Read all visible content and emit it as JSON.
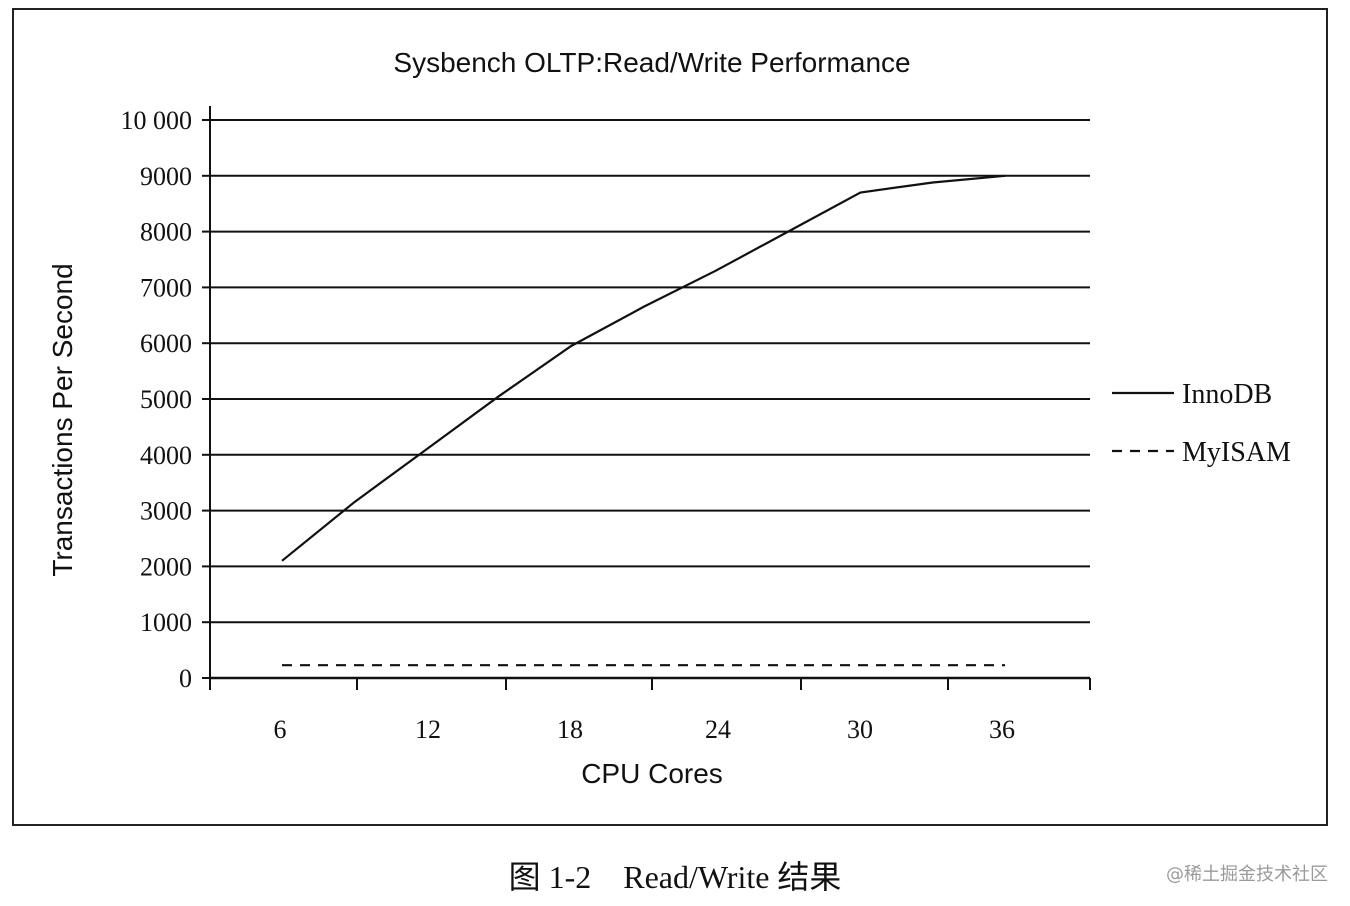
{
  "chart_data": {
    "type": "line",
    "title": "Sysbench OLTP:Read/Write Performance",
    "xlabel": "CPU Cores",
    "ylabel": "Transactions Per Second",
    "x_ticks": [
      "6",
      "12",
      "18",
      "24",
      "30",
      "36"
    ],
    "y_ticks": [
      "0",
      "1000",
      "2000",
      "3000",
      "4000",
      "5000",
      "6000",
      "7000",
      "8000",
      "9000",
      "10 000"
    ],
    "ylim": [
      0,
      10000
    ],
    "grid": "horizontal",
    "legend": "right",
    "series": [
      {
        "name": "InnoDB",
        "style": "solid",
        "x": [
          6,
          9,
          12,
          15,
          18,
          21,
          24,
          27,
          30,
          33,
          36
        ],
        "y": [
          2100,
          3150,
          4100,
          5050,
          5950,
          6650,
          7300,
          8000,
          8700,
          8880,
          9000
        ]
      },
      {
        "name": "MyISAM",
        "style": "dashed",
        "x": [
          6,
          9,
          12,
          15,
          18,
          21,
          24,
          27,
          30,
          33,
          36
        ],
        "y": [
          230,
          230,
          230,
          230,
          230,
          230,
          230,
          230,
          230,
          230,
          230
        ]
      }
    ]
  },
  "caption": "图 1-2　Read/Write 结果",
  "watermark": "@稀土掘金技术社区"
}
